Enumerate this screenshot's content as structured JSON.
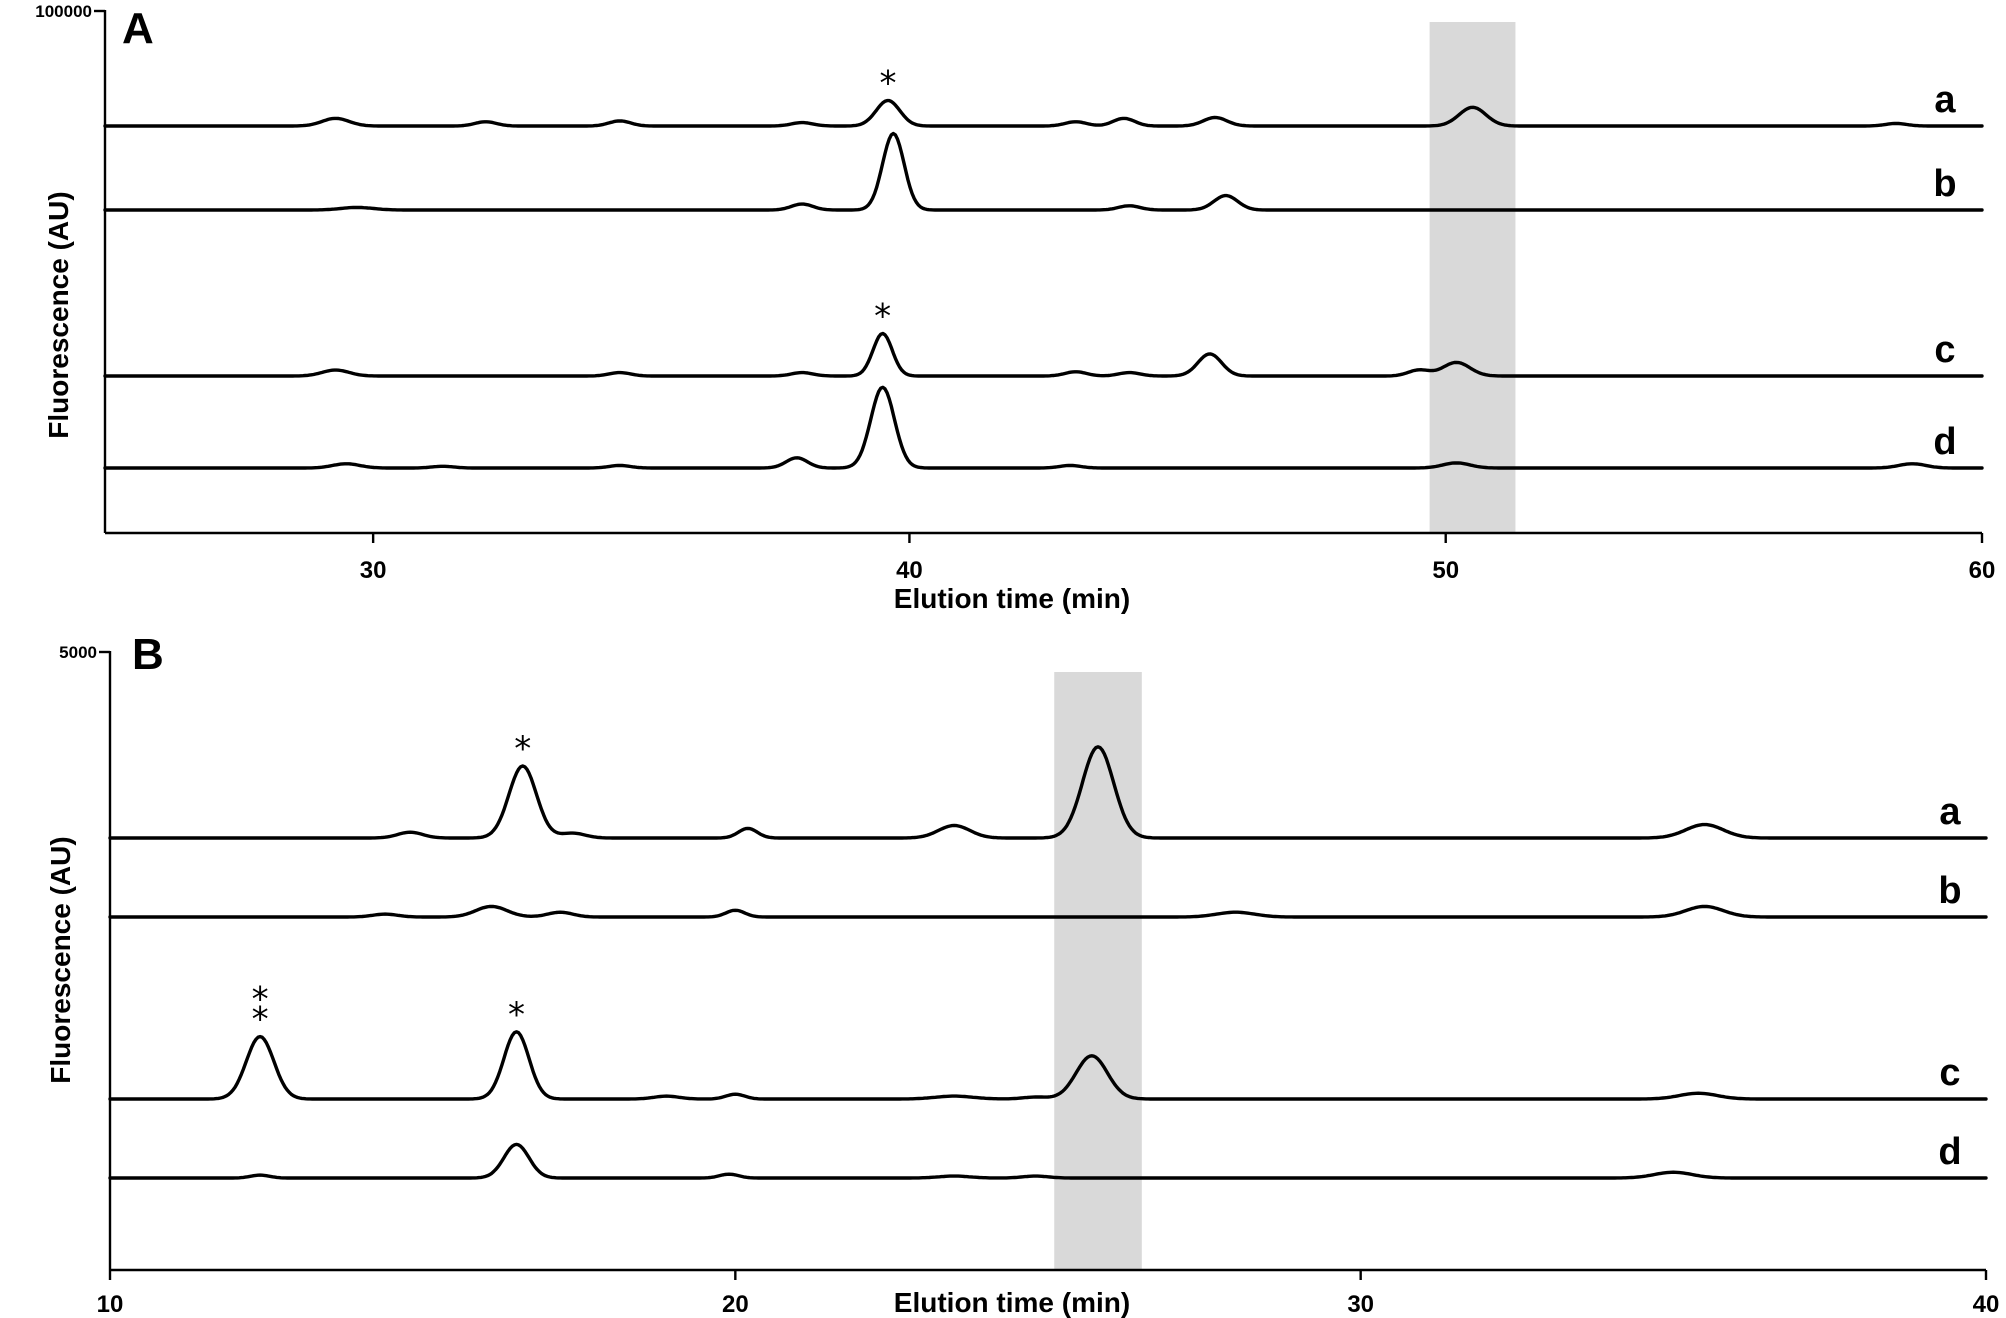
{
  "chart_data": [
    {
      "type": "line",
      "panel": "A",
      "xlabel": "Elution time (min)",
      "ylabel": "Fluorescence (AU)",
      "xlim": [
        25,
        60
      ],
      "x_ticks": [
        30,
        40,
        50,
        60
      ],
      "y_max_label": "100000",
      "highlight_region": [
        49.7,
        51.3
      ],
      "series": [
        {
          "name": "a",
          "peaks": [
            [
              29.3,
              0.9,
              0.25
            ],
            [
              32.1,
              0.5,
              0.2
            ],
            [
              34.6,
              0.6,
              0.2
            ],
            [
              38.0,
              0.4,
              0.2
            ],
            [
              39.6,
              3.0,
              0.22
            ],
            [
              43.1,
              0.5,
              0.2
            ],
            [
              44.0,
              0.9,
              0.2
            ],
            [
              45.7,
              1.0,
              0.22
            ],
            [
              50.5,
              2.2,
              0.25
            ],
            [
              58.4,
              0.3,
              0.2
            ]
          ],
          "annotations": [
            {
              "x": 39.6,
              "text": "*"
            }
          ]
        },
        {
          "name": "b",
          "peaks": [
            [
              29.7,
              0.3,
              0.3
            ],
            [
              38.0,
              0.7,
              0.2
            ],
            [
              39.7,
              9.0,
              0.2
            ],
            [
              44.1,
              0.5,
              0.2
            ],
            [
              45.9,
              1.7,
              0.22
            ]
          ],
          "annotations": []
        },
        {
          "name": "c",
          "peaks": [
            [
              29.3,
              0.7,
              0.25
            ],
            [
              34.6,
              0.4,
              0.2
            ],
            [
              38.0,
              0.4,
              0.2
            ],
            [
              39.5,
              5.0,
              0.18
            ],
            [
              43.1,
              0.5,
              0.2
            ],
            [
              44.1,
              0.4,
              0.2
            ],
            [
              45.6,
              2.6,
              0.22
            ],
            [
              49.5,
              0.7,
              0.2
            ],
            [
              50.2,
              1.6,
              0.25
            ]
          ],
          "annotations": [
            {
              "x": 39.5,
              "text": "*"
            }
          ]
        },
        {
          "name": "d",
          "peaks": [
            [
              29.5,
              0.5,
              0.25
            ],
            [
              31.3,
              0.2,
              0.2
            ],
            [
              34.6,
              0.3,
              0.2
            ],
            [
              37.9,
              1.2,
              0.2
            ],
            [
              39.5,
              9.5,
              0.22
            ],
            [
              43.0,
              0.3,
              0.2
            ],
            [
              50.2,
              0.6,
              0.25
            ],
            [
              58.7,
              0.5,
              0.25
            ]
          ],
          "annotations": []
        }
      ]
    },
    {
      "type": "line",
      "panel": "B",
      "xlabel": "Elution time (min)",
      "ylabel": "Fluorescence (AU)",
      "xlim": [
        10,
        40
      ],
      "x_ticks": [
        10,
        20,
        30,
        40
      ],
      "y_max_label": "5000",
      "highlight_region": [
        25.1,
        26.5
      ],
      "series": [
        {
          "name": "a",
          "peaks": [
            [
              14.8,
              0.6,
              0.2
            ],
            [
              16.6,
              7.5,
              0.22
            ],
            [
              17.4,
              0.5,
              0.2
            ],
            [
              20.2,
              1.0,
              0.15
            ],
            [
              23.5,
              1.3,
              0.25
            ],
            [
              25.8,
              9.5,
              0.25
            ],
            [
              35.5,
              1.4,
              0.3
            ]
          ],
          "annotations": [
            {
              "x": 16.6,
              "text": "*"
            }
          ]
        },
        {
          "name": "b",
          "peaks": [
            [
              14.4,
              0.3,
              0.2
            ],
            [
              16.1,
              1.1,
              0.25
            ],
            [
              17.2,
              0.5,
              0.2
            ],
            [
              20.0,
              0.7,
              0.15
            ],
            [
              28.0,
              0.5,
              0.3
            ],
            [
              35.5,
              1.1,
              0.3
            ]
          ],
          "annotations": []
        },
        {
          "name": "c",
          "peaks": [
            [
              12.4,
              6.5,
              0.22
            ],
            [
              16.5,
              7.0,
              0.2
            ],
            [
              18.9,
              0.3,
              0.2
            ],
            [
              20.0,
              0.5,
              0.15
            ],
            [
              23.5,
              0.3,
              0.3
            ],
            [
              24.8,
              0.2,
              0.2
            ],
            [
              25.7,
              4.5,
              0.25
            ],
            [
              35.4,
              0.6,
              0.3
            ]
          ],
          "annotations": [
            {
              "x": 12.4,
              "text": "**"
            },
            {
              "x": 16.5,
              "text": "*"
            }
          ]
        },
        {
          "name": "d",
          "peaks": [
            [
              12.4,
              0.3,
              0.15
            ],
            [
              16.5,
              3.5,
              0.2
            ],
            [
              19.9,
              0.4,
              0.15
            ],
            [
              23.5,
              0.2,
              0.25
            ],
            [
              24.8,
              0.2,
              0.2
            ],
            [
              35.0,
              0.6,
              0.3
            ]
          ],
          "annotations": []
        }
      ]
    }
  ]
}
